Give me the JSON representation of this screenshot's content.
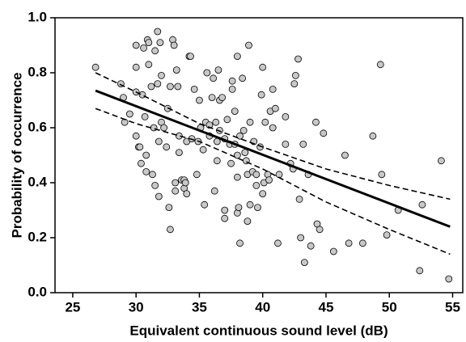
{
  "chart_data": {
    "type": "scatter",
    "x_label": "Equivalent continuous sound level (dB)",
    "y_label": "Probability of occurrence",
    "xlim": [
      23.6,
      55.8
    ],
    "ylim": [
      0,
      1.0
    ],
    "xticks": [
      25,
      30,
      35,
      40,
      45,
      50,
      55
    ],
    "yticks": [
      {
        "value": 0,
        "label": "0.0"
      },
      {
        "value": 0.2,
        "label": "0.2"
      },
      {
        "value": 0.4,
        "label": "0.4"
      },
      {
        "value": 0.6,
        "label": "0.6"
      },
      {
        "value": 0.8,
        "label": "0.8"
      },
      {
        "value": 1.0,
        "label": "1.0"
      }
    ],
    "point_color": "#c8c8c8",
    "x": [
      26.8,
      28.8,
      29,
      29.1,
      29.5,
      30,
      30,
      30,
      30,
      30.2,
      30.3,
      30.4,
      30.5,
      30.6,
      30.7,
      30.8,
      30.8,
      30.9,
      31,
      31,
      31.2,
      31.3,
      31.4,
      31.5,
      31.5,
      31.7,
      31.7,
      31.8,
      31.8,
      31.9,
      32,
      32,
      32.2,
      32.4,
      32.5,
      32.6,
      32.7,
      32.7,
      32.9,
      33,
      33.1,
      33.1,
      33.2,
      33.3,
      33.4,
      33.4,
      33.6,
      33.8,
      33.8,
      33.9,
      34,
      34,
      34.2,
      34.3,
      34.4,
      34.6,
      34.8,
      34.9,
      35,
      35.1,
      35.3,
      35.4,
      35.5,
      35.6,
      35.8,
      35.8,
      36,
      36.1,
      36.2,
      36.3,
      36.4,
      36.4,
      36.5,
      36.6,
      36.6,
      36.8,
      37,
      37,
      37,
      37.2,
      37.4,
      37.5,
      37.6,
      37.6,
      37.8,
      37.8,
      38,
      38,
      38,
      38,
      38.1,
      38.2,
      38.2,
      38.4,
      38.5,
      38.6,
      38.7,
      38.8,
      38.8,
      38.9,
      39,
      39,
      39.2,
      39.3,
      39.5,
      39.5,
      39.6,
      39.8,
      39.9,
      40,
      40,
      40.1,
      40.2,
      40.4,
      40.5,
      40.6,
      40.8,
      40.8,
      41,
      41.2,
      41.3,
      41.8,
      41.8,
      42.2,
      42.4,
      42.5,
      42.6,
      42.8,
      42.9,
      43,
      43.2,
      43.3,
      43.6,
      43.8,
      44.2,
      44.3,
      44.5,
      44.8,
      45.6,
      46.5,
      46.8,
      47.9,
      48.7,
      49.3,
      49.4,
      49.8,
      50.7,
      52.4,
      52.6,
      54.1,
      54.7
    ],
    "values": [
      0.82,
      0.76,
      0.71,
      0.62,
      0.65,
      0.9,
      0.82,
      0.73,
      0.57,
      0.53,
      0.53,
      0.47,
      0.72,
      0.89,
      0.64,
      0.44,
      0.5,
      0.92,
      0.91,
      0.83,
      0.75,
      0.43,
      0.6,
      0.39,
      0.88,
      0.95,
      0.76,
      0.55,
      0.35,
      0.91,
      0.62,
      0.79,
      0.6,
      0.53,
      0.67,
      0.31,
      0.23,
      0.75,
      0.92,
      0.9,
      0.37,
      0.4,
      0.81,
      0.75,
      0.57,
      0.51,
      0.41,
      0.41,
      0.38,
      0.4,
      0.36,
      0.55,
      0.86,
      0.86,
      0.56,
      0.74,
      0.43,
      0.55,
      0.7,
      0.6,
      0.52,
      0.32,
      0.62,
      0.8,
      0.61,
      0.57,
      0.71,
      0.78,
      0.37,
      0.62,
      0.55,
      0.48,
      0.81,
      0.59,
      0.7,
      0.71,
      0.56,
      0.3,
      0.27,
      0.63,
      0.54,
      0.47,
      0.77,
      0.74,
      0.66,
      0.54,
      0.86,
      0.5,
      0.42,
      0.29,
      0.31,
      0.18,
      0.57,
      0.78,
      0.59,
      0.51,
      0.48,
      0.43,
      0.26,
      0.9,
      0.62,
      0.32,
      0.44,
      0.55,
      0.43,
      0.39,
      0.31,
      0.53,
      0.72,
      0.36,
      0.82,
      0.4,
      0.62,
      0.43,
      0.41,
      0.66,
      0.74,
      0.6,
      0.67,
      0.18,
      0.43,
      0.64,
      0.54,
      0.47,
      0.45,
      0.76,
      0.79,
      0.85,
      0.34,
      0.2,
      0.54,
      0.11,
      0.43,
      0.17,
      0.62,
      0.25,
      0.23,
      0.58,
      0.15,
      0.5,
      0.18,
      0.18,
      0.57,
      0.83,
      0.43,
      0.21,
      0.3,
      0.08,
      0.32,
      0.48,
      0.05
    ],
    "lines": [
      {
        "style": "solid",
        "x": [
          26.8,
          54.8
        ],
        "values": [
          0.735,
          0.24
        ]
      },
      {
        "style": "dashed",
        "x": [
          26.8,
          30,
          35,
          40,
          45,
          50,
          54.8
        ],
        "values": [
          0.8,
          0.73,
          0.615,
          0.53,
          0.45,
          0.39,
          0.34
        ]
      },
      {
        "style": "dashed",
        "x": [
          26.8,
          30,
          35,
          40,
          45,
          50,
          54.8
        ],
        "values": [
          0.67,
          0.615,
          0.55,
          0.45,
          0.33,
          0.23,
          0.14
        ]
      }
    ]
  }
}
